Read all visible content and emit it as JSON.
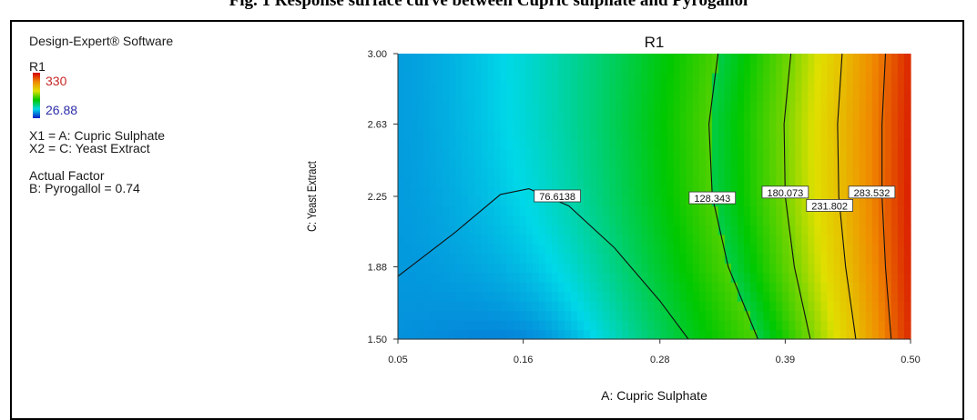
{
  "figure_title": "Fig. 1  Response surface curve between Cupric sulphate and Pyrogallol",
  "legend": {
    "software": "Design-Expert® Software",
    "response_name": "R1",
    "response_max": "330",
    "response_min": "26.88",
    "x1_line": "X1 = A: Cupric Sulphate",
    "x2_line": "X2 = C: Yeast Extract",
    "actual_factor_heading": "Actual Factor",
    "actual_factor_line": "B: Pyrogallol = 0.74"
  },
  "chart_data": {
    "type": "heatmap",
    "subtype": "contour",
    "title": "R1",
    "xlabel": "A: Cupric Sulphate",
    "ylabel": "C: Yeast Extract",
    "xlim": [
      0.05,
      0.5
    ],
    "ylim": [
      1.5,
      3.0
    ],
    "x_ticks": [
      "0.05",
      "0.16",
      "0.28",
      "0.39",
      "0.50"
    ],
    "y_ticks": [
      "1.50",
      "1.88",
      "2.25",
      "2.63",
      "3.00"
    ],
    "colorscale": [
      "#0a1ec8",
      "#00d8e8",
      "#00c800",
      "#e0e000",
      "#f08a00",
      "#d40000"
    ],
    "contours": [
      {
        "label": "76.6138",
        "points": [
          [
            0.05,
            1.83
          ],
          [
            0.1,
            2.06
          ],
          [
            0.14,
            2.26
          ],
          [
            0.165,
            2.29
          ],
          [
            0.2,
            2.2
          ],
          [
            0.24,
            1.98
          ],
          [
            0.28,
            1.7
          ],
          [
            0.305,
            1.5
          ]
        ],
        "label_at": [
          0.19,
          2.25
        ]
      },
      {
        "label": "128.343",
        "points": [
          [
            0.331,
            3.0
          ],
          [
            0.323,
            2.63
          ],
          [
            0.326,
            2.25
          ],
          [
            0.34,
            1.88
          ],
          [
            0.366,
            1.5
          ]
        ],
        "label_at": [
          0.326,
          2.24
        ]
      },
      {
        "label": "180.073",
        "points": [
          [
            0.395,
            3.0
          ],
          [
            0.389,
            2.63
          ],
          [
            0.39,
            2.25
          ],
          [
            0.398,
            1.88
          ],
          [
            0.412,
            1.5
          ]
        ],
        "label_at": [
          0.39,
          2.27
        ]
      },
      {
        "label": "231.802",
        "points": [
          [
            0.44,
            3.0
          ],
          [
            0.436,
            2.63
          ],
          [
            0.437,
            2.25
          ],
          [
            0.443,
            1.88
          ],
          [
            0.452,
            1.5
          ]
        ],
        "label_at": [
          0.429,
          2.2
        ]
      },
      {
        "label": "283.532",
        "points": [
          [
            0.478,
            3.0
          ],
          [
            0.475,
            2.63
          ],
          [
            0.475,
            2.25
          ],
          [
            0.478,
            1.88
          ],
          [
            0.483,
            1.5
          ]
        ],
        "label_at": [
          0.466,
          2.27
        ]
      }
    ]
  }
}
